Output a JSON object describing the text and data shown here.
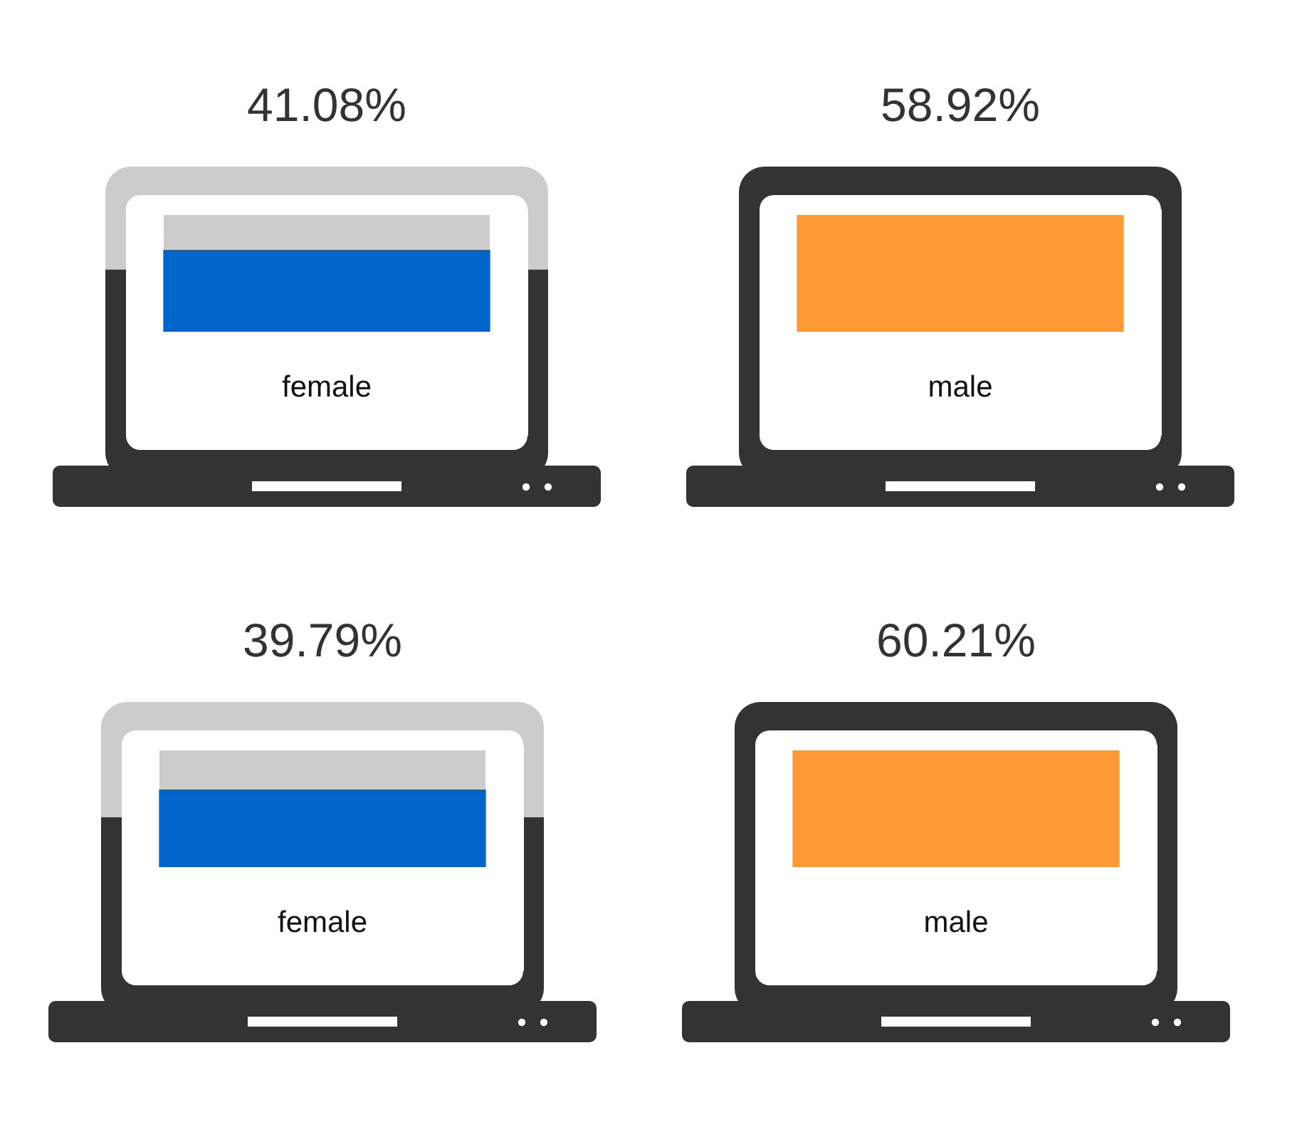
{
  "chart_data": [
    {
      "type": "bar",
      "categories": [
        "female",
        "male"
      ],
      "values": [
        41.08,
        58.92
      ],
      "colors": [
        "#0066cc",
        "#ff9933"
      ],
      "value_labels": [
        "41.08%",
        "58.92%"
      ]
    },
    {
      "type": "bar",
      "categories": [
        "female",
        "male"
      ],
      "values": [
        39.79,
        60.21
      ],
      "colors": [
        "#0066cc",
        "#ff9933"
      ],
      "value_labels": [
        "39.79%",
        "60.21%"
      ]
    }
  ]
}
